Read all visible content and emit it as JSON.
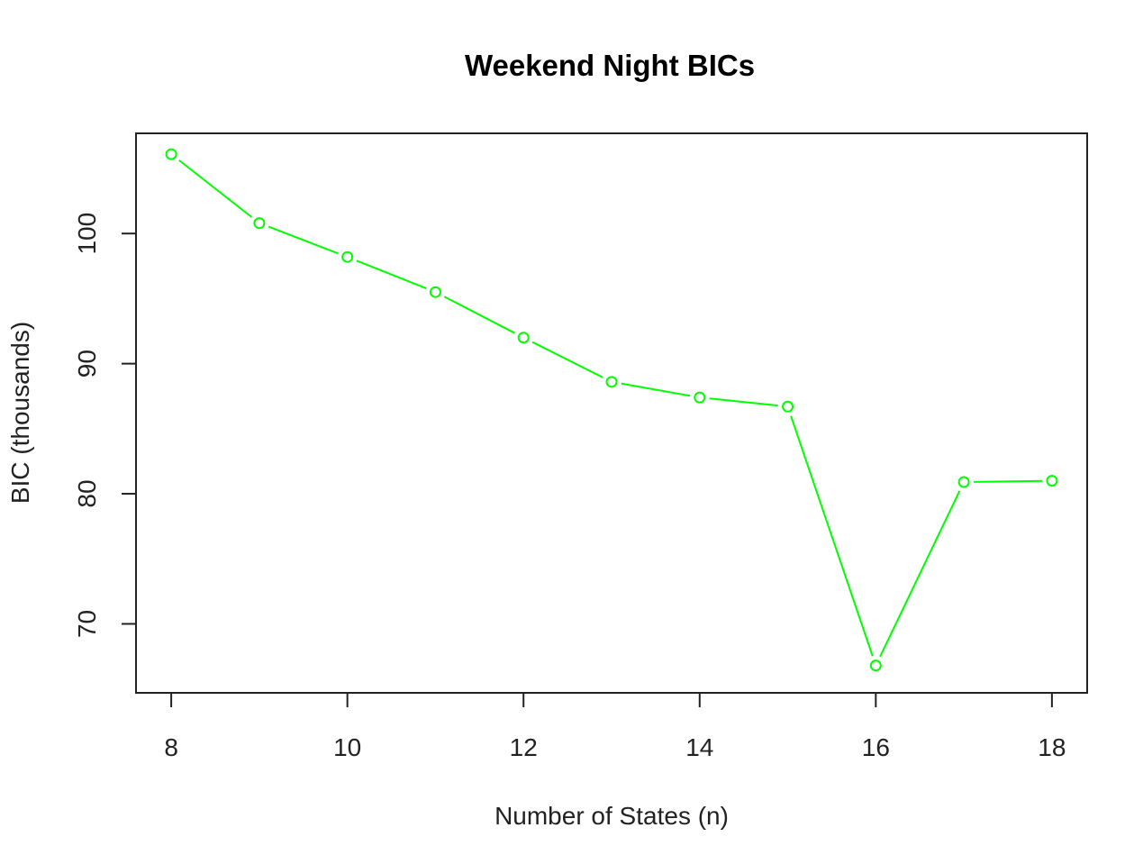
{
  "chart_data": {
    "type": "line",
    "title": "Weekend Night BICs",
    "xlabel": "Number of States (n)",
    "ylabel": "BIC (thousands)",
    "x": [
      8,
      9,
      10,
      11,
      12,
      13,
      14,
      15,
      16,
      17,
      18
    ],
    "series": [
      {
        "values": [
          106.1,
          100.8,
          98.2,
          95.5,
          92.0,
          88.6,
          87.4,
          86.7,
          66.8,
          80.9,
          81.0
        ],
        "color": "#00ff00"
      }
    ],
    "xlim": [
      7.6,
      18.4
    ],
    "ylim": [
      64.7,
      107.7
    ],
    "xticks": [
      8,
      10,
      12,
      14,
      16,
      18
    ],
    "yticks": [
      70,
      80,
      90,
      100
    ],
    "grid": false,
    "markers": "open-circle",
    "line_style": "solid with gaps at markers"
  }
}
